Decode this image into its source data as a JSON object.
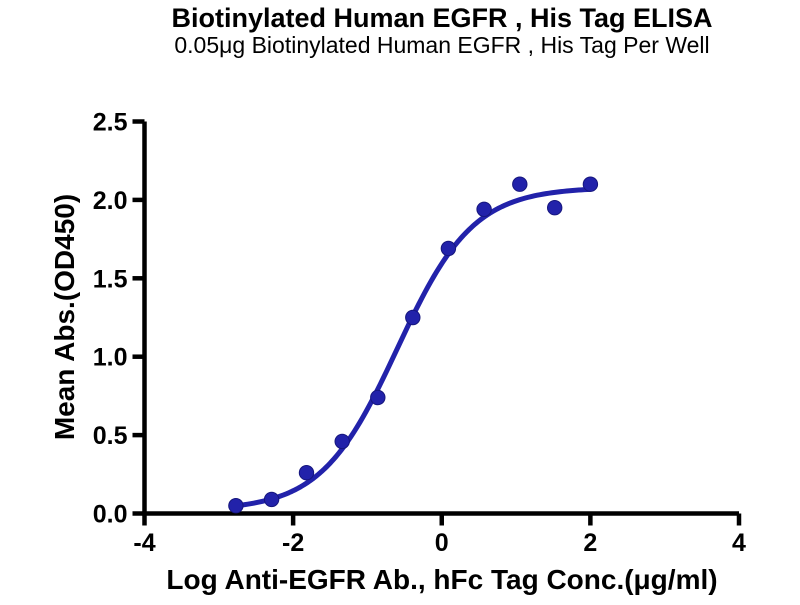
{
  "chart_data": {
    "type": "scatter",
    "title": "Biotinylated Human EGFR , His Tag ELISA",
    "subtitle": "0.05μg Biotinylated Human EGFR , His Tag Per Well",
    "xlabel": "Log Anti-EGFR Ab., hFc Tag Conc.(μg/ml)",
    "ylabel": "Mean Abs.(OD450)",
    "xlim": [
      -4,
      4
    ],
    "ylim": [
      0,
      2.5
    ],
    "x_ticks": [
      -4,
      -2,
      0,
      2,
      4
    ],
    "x_tick_labels": [
      "-4",
      "-2",
      "0",
      "2",
      "4"
    ],
    "y_ticks": [
      0,
      0.5,
      1,
      1.5,
      2,
      2.5
    ],
    "y_tick_labels": [
      "0.0",
      "0.5",
      "1.0",
      "1.5",
      "2.0",
      "2.5"
    ],
    "grid": false,
    "legend": null,
    "axis_color": "#000000",
    "series": [
      {
        "name": "Anti-EGFR Ab., hFc Tag",
        "color": "#2222aa",
        "marker": "circle",
        "points": [
          {
            "x": -2.77,
            "y": 0.05
          },
          {
            "x": -2.29,
            "y": 0.09
          },
          {
            "x": -1.82,
            "y": 0.26
          },
          {
            "x": -1.34,
            "y": 0.46
          },
          {
            "x": -0.86,
            "y": 0.74
          },
          {
            "x": -0.39,
            "y": 1.25
          },
          {
            "x": 0.09,
            "y": 1.69
          },
          {
            "x": 0.57,
            "y": 1.94
          },
          {
            "x": 1.05,
            "y": 2.1
          },
          {
            "x": 1.52,
            "y": 1.95
          },
          {
            "x": 2.0,
            "y": 2.1
          }
        ]
      }
    ],
    "fit_curve": {
      "model": "4PL sigmoid",
      "bottom": 0.02,
      "top": 2.08,
      "logEC50": -0.6,
      "hill_slope": 0.85,
      "x_start": -2.77,
      "x_end": 2.0
    }
  }
}
